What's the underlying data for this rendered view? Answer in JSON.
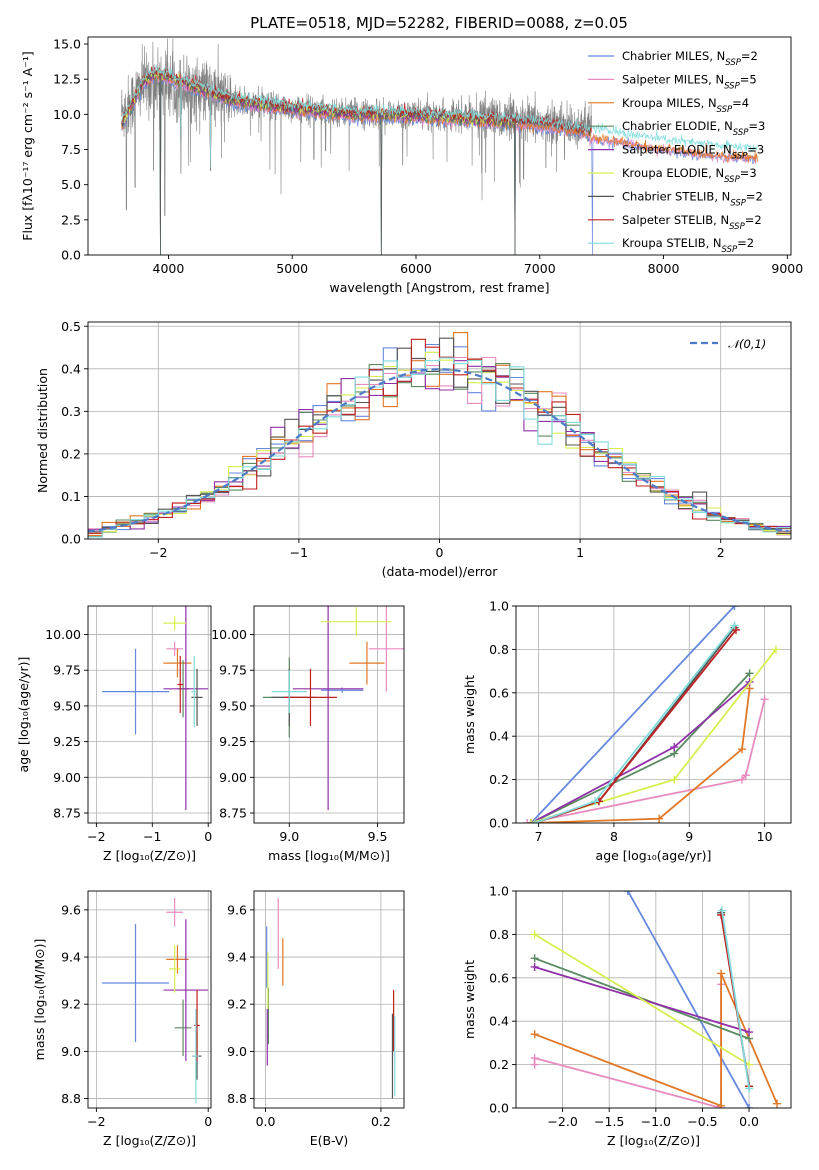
{
  "figure": {
    "title": "PLATE=0518, MJD=52282, FIBERID=0088, z=0.05"
  },
  "colors": {
    "Chabrier MILES": "#6688dd",
    "Salpeter MILES": "#e88cc0",
    "Kroupa MILES": "#e07828",
    "Chabrier ELODIE": "#5a8a60",
    "Salpeter ELODIE": "#9030a8",
    "Kroupa ELODIE": "#d8ee50",
    "Chabrier STELIB": "#555555",
    "Salpeter STELIB": "#c02020",
    "Kroupa STELIB": "#80dcdc"
  },
  "chart_data": [
    {
      "id": "spectrum",
      "type": "line",
      "title": "PLATE=0518, MJD=52282, FIBERID=0088, z=0.05",
      "xlabel": "wavelength [Angstrom, rest frame]",
      "ylabel": "Flux [fλ10⁻¹⁷ erg cm⁻² s⁻¹ A⁻¹]",
      "xlim": [
        3350,
        9030
      ],
      "ylim": [
        0,
        15.5
      ],
      "xticks": [
        "4000",
        "5000",
        "6000",
        "7000",
        "8000",
        "9000"
      ],
      "yticks": [
        "0.0",
        "2.5",
        "5.0",
        "7.5",
        "10.0",
        "12.5",
        "15.0"
      ],
      "legend_position": "top-right",
      "legend": [
        {
          "name": "Chabrier MILES",
          "sub": "SSP",
          "n": "2"
        },
        {
          "name": "Salpeter MILES",
          "sub": "SSP",
          "n": "5"
        },
        {
          "name": "Kroupa MILES",
          "sub": "SSP",
          "n": "4"
        },
        {
          "name": "Chabrier ELODIE",
          "sub": "SSP",
          "n": "3"
        },
        {
          "name": "Salpeter ELODIE",
          "sub": "SSP",
          "n": "3"
        },
        {
          "name": "Kroupa ELODIE",
          "sub": "SSP",
          "n": "3"
        },
        {
          "name": "Chabrier STELIB",
          "sub": "SSP",
          "n": "2"
        },
        {
          "name": "Salpeter STELIB",
          "sub": "SSP",
          "n": "2"
        },
        {
          "name": "Kroupa STELIB",
          "sub": "SSP",
          "n": "2"
        }
      ],
      "series": [
        {
          "name": "data",
          "x_range": [
            3620,
            7420
          ],
          "envelope": [
            [
              3650,
              10.2
            ],
            [
              3800,
              12.2
            ],
            [
              3950,
              12.4
            ],
            [
              4100,
              12.0
            ],
            [
              4300,
              11.6
            ],
            [
              4600,
              10.8
            ],
            [
              5000,
              10.4
            ],
            [
              5500,
              10.1
            ],
            [
              6000,
              10.0
            ],
            [
              6500,
              9.9
            ],
            [
              7000,
              9.4
            ],
            [
              7400,
              9.1
            ]
          ],
          "dips": [
            [
              3660,
              3.2
            ],
            [
              3730,
              4.8
            ],
            [
              3880,
              6.0
            ],
            [
              3935,
              2.2
            ],
            [
              3970,
              2.8
            ],
            [
              4101,
              5.8
            ],
            [
              4340,
              6.0
            ],
            [
              5175,
              6.8
            ],
            [
              5270,
              7.4
            ],
            [
              5893,
              6.4
            ],
            [
              6563,
              6.0
            ],
            [
              6870,
              5.4
            ],
            [
              7050,
              6.2
            ],
            [
              7200,
              6.8
            ]
          ]
        },
        {
          "name": "models",
          "x_range": [
            3620,
            8760
          ],
          "envelope": [
            [
              3620,
              9.2
            ],
            [
              3700,
              10.6
            ],
            [
              3800,
              12.4
            ],
            [
              3900,
              12.9
            ],
            [
              4000,
              12.6
            ],
            [
              4200,
              12.0
            ],
            [
              4500,
              11.0
            ],
            [
              5000,
              10.4
            ],
            [
              5500,
              10.0
            ],
            [
              6000,
              9.9
            ],
            [
              6500,
              9.6
            ],
            [
              7000,
              9.3
            ],
            [
              7500,
              8.6
            ],
            [
              8000,
              7.9
            ],
            [
              8400,
              7.5
            ],
            [
              8760,
              7.3
            ]
          ],
          "dips": [
            [
              3934,
              0.0
            ],
            [
              4101,
              8.0
            ],
            [
              4340,
              6.2
            ],
            [
              5720,
              0.0
            ],
            [
              6800,
              0.0
            ],
            [
              7425,
              0.0
            ]
          ]
        }
      ]
    },
    {
      "id": "residuals",
      "type": "step",
      "xlabel": "(data-model)/error",
      "ylabel": "Normed distribution",
      "xlim": [
        -2.5,
        2.5
      ],
      "ylim": [
        0,
        0.51
      ],
      "xticks": [
        "−2",
        "−1",
        "0",
        "1",
        "2"
      ],
      "yticks": [
        "0.0",
        "0.1",
        "0.2",
        "0.3",
        "0.4",
        "0.5"
      ],
      "bin_width": 0.1,
      "legend_position": "top-right",
      "legend": [
        {
          "name": "𝒩(0,1)"
        }
      ],
      "normal_curve": {
        "mu": 0,
        "sigma": 1
      }
    },
    {
      "id": "age_vs_Z",
      "type": "scatter",
      "xlabel": "Z [log₁₀(Z/Z⊙)]",
      "ylabel": "age  [log₁₀(age/yr)]",
      "xlim": [
        -2.15,
        0.05
      ],
      "ylim": [
        8.68,
        10.2
      ],
      "xticks": [
        "−2",
        "−1",
        "0"
      ],
      "yticks": [
        "8.75",
        "9.00",
        "9.25",
        "9.50",
        "9.75",
        "10.00"
      ],
      "points": [
        {
          "series": "Chabrier MILES",
          "x": -1.3,
          "y": 9.6,
          "xerr": 0.6,
          "yerr": 0.3
        },
        {
          "series": "Salpeter MILES",
          "x": -0.6,
          "y": 9.9,
          "xerr": 0.15,
          "yerr": 0.05
        },
        {
          "series": "Kroupa MILES",
          "x": -0.55,
          "y": 9.8,
          "xerr": 0.25,
          "yerr": 0.1
        },
        {
          "series": "Chabrier ELODIE",
          "x": -0.45,
          "y": 9.62,
          "xerr": 0.1,
          "yerr": 0.2
        },
        {
          "series": "Salpeter ELODIE",
          "x": -0.4,
          "y": 9.62,
          "xerr": 0.4,
          "yerr": 0.85
        },
        {
          "series": "Kroupa ELODIE",
          "x": -0.6,
          "y": 10.08,
          "xerr": 0.2,
          "yerr": 0.05
        },
        {
          "series": "Chabrier STELIB",
          "x": -0.2,
          "y": 9.56,
          "xerr": 0.1,
          "yerr": 0.2
        },
        {
          "series": "Salpeter STELIB",
          "x": -0.5,
          "y": 9.65,
          "xerr": 0.05,
          "yerr": 0.2
        },
        {
          "series": "Kroupa STELIB",
          "x": -0.25,
          "y": 9.6,
          "xerr": 0.05,
          "yerr": 0.25
        }
      ]
    },
    {
      "id": "age_vs_mass",
      "type": "scatter",
      "xlabel": "mass [log₁₀(M/M⊙)]",
      "ylabel": "",
      "xlim": [
        8.8,
        9.65
      ],
      "ylim": [
        8.68,
        10.2
      ],
      "xticks": [
        "9.0",
        "9.5"
      ],
      "yticks": [
        "8.75",
        "9.00",
        "9.25",
        "9.50",
        "9.75",
        "10.00"
      ],
      "points": [
        {
          "series": "Chabrier MILES",
          "x": 9.3,
          "y": 9.61,
          "xerr": 0.12,
          "yerr": 0.02
        },
        {
          "series": "Salpeter MILES",
          "x": 9.55,
          "y": 9.9,
          "xerr": 0.1,
          "yerr": 0.3
        },
        {
          "series": "Kroupa MILES",
          "x": 9.44,
          "y": 9.8,
          "xerr": 0.1,
          "yerr": 0.15
        },
        {
          "series": "Chabrier ELODIE",
          "x": 9.0,
          "y": 9.56,
          "xerr": 0.15,
          "yerr": 0.28
        },
        {
          "series": "Salpeter ELODIE",
          "x": 9.22,
          "y": 9.62,
          "xerr": 0.2,
          "yerr": 0.85
        },
        {
          "series": "Kroupa ELODIE",
          "x": 9.38,
          "y": 10.09,
          "xerr": 0.2,
          "yerr": 0.1
        },
        {
          "series": "Chabrier STELIB",
          "x": 9.0,
          "y": 9.56,
          "xerr": 0.1,
          "yerr": 0.2
        },
        {
          "series": "Salpeter STELIB",
          "x": 9.12,
          "y": 9.56,
          "xerr": 0.15,
          "yerr": 0.2
        },
        {
          "series": "Kroupa STELIB",
          "x": 9.0,
          "y": 9.6,
          "xerr": 0.1,
          "yerr": 0.15
        }
      ]
    },
    {
      "id": "weight_vs_age",
      "type": "line",
      "xlabel": "age  [log₁₀(age/yr)]",
      "ylabel": "mass weight",
      "xlim": [
        6.7,
        10.35
      ],
      "ylim": [
        0,
        1.0
      ],
      "xticks": [
        "7",
        "8",
        "9",
        "10"
      ],
      "yticks": [
        "0.0",
        "0.2",
        "0.4",
        "0.6",
        "0.8",
        "1.0"
      ],
      "series": [
        {
          "name": "Chabrier MILES",
          "x": [
            6.9,
            9.6
          ],
          "y": [
            0.0,
            1.0
          ]
        },
        {
          "name": "Salpeter MILES",
          "x": [
            6.85,
            9.7,
            9.75,
            10.0
          ],
          "y": [
            0.0,
            0.2,
            0.22,
            0.57
          ]
        },
        {
          "name": "Kroupa MILES",
          "x": [
            6.9,
            8.6,
            9.7,
            9.8
          ],
          "y": [
            0.0,
            0.02,
            0.34,
            0.62
          ]
        },
        {
          "name": "Chabrier ELODIE",
          "x": [
            6.9,
            8.8,
            9.8
          ],
          "y": [
            0.0,
            0.32,
            0.69
          ]
        },
        {
          "name": "Salpeter ELODIE",
          "x": [
            6.9,
            8.8,
            9.8
          ],
          "y": [
            0.0,
            0.35,
            0.65
          ]
        },
        {
          "name": "Kroupa ELODIE",
          "x": [
            6.9,
            8.8,
            10.15
          ],
          "y": [
            0.0,
            0.2,
            0.8
          ]
        },
        {
          "name": "Chabrier STELIB",
          "x": [
            6.95,
            7.8,
            9.6
          ],
          "y": [
            0.0,
            0.1,
            0.9
          ]
        },
        {
          "name": "Salpeter STELIB",
          "x": [
            6.95,
            7.8,
            9.62
          ],
          "y": [
            0.0,
            0.1,
            0.89
          ]
        },
        {
          "name": "Kroupa STELIB",
          "x": [
            6.95,
            7.75,
            9.6
          ],
          "y": [
            0.0,
            0.1,
            0.91
          ]
        }
      ]
    },
    {
      "id": "mass_vs_Z",
      "type": "scatter",
      "xlabel": "Z [log₁₀(Z/Z⊙)]",
      "ylabel": "mass [log₁₀(M/M⊙)]",
      "xlim": [
        -2.15,
        0.05
      ],
      "ylim": [
        8.76,
        9.68
      ],
      "xticks": [
        "−2",
        "0"
      ],
      "yticks": [
        "8.8",
        "9.0",
        "9.2",
        "9.4",
        "9.6"
      ],
      "points": [
        {
          "series": "Chabrier MILES",
          "x": -1.3,
          "y": 9.29,
          "xerr": 0.6,
          "yerr": 0.25
        },
        {
          "series": "Salpeter MILES",
          "x": -0.6,
          "y": 9.59,
          "xerr": 0.15,
          "yerr": 0.06
        },
        {
          "series": "Kroupa MILES",
          "x": -0.55,
          "y": 9.39,
          "xerr": 0.2,
          "yerr": 0.06
        },
        {
          "series": "Chabrier ELODIE",
          "x": -0.45,
          "y": 9.1,
          "xerr": 0.15,
          "yerr": 0.12
        },
        {
          "series": "Salpeter ELODIE",
          "x": -0.4,
          "y": 9.26,
          "xerr": 0.4,
          "yerr": 0.3
        },
        {
          "series": "Kroupa ELODIE",
          "x": -0.6,
          "y": 9.35,
          "xerr": 0.1,
          "yerr": 0.1
        },
        {
          "series": "Chabrier STELIB",
          "x": -0.2,
          "y": 8.98,
          "xerr": 0.08,
          "yerr": 0.1
        },
        {
          "series": "Salpeter STELIB",
          "x": -0.2,
          "y": 9.11,
          "xerr": 0.05,
          "yerr": 0.15
        },
        {
          "series": "Kroupa STELIB",
          "x": -0.22,
          "y": 8.98,
          "xerr": 0.05,
          "yerr": 0.2
        }
      ]
    },
    {
      "id": "mass_vs_ebv",
      "type": "scatter",
      "xlabel": "E(B-V)",
      "ylabel": "",
      "xlim": [
        -0.02,
        0.24
      ],
      "ylim": [
        8.76,
        9.68
      ],
      "xticks": [
        "0.0",
        "0.2"
      ],
      "yticks": [
        "8.8",
        "9.0",
        "9.2",
        "9.4",
        "9.6"
      ],
      "points": [
        {
          "series": "Chabrier MILES",
          "x": 0.002,
          "y": 9.4,
          "xerr": 0.001,
          "yerr": 0.13
        },
        {
          "series": "Salpeter MILES",
          "x": 0.022,
          "y": 9.5,
          "xerr": 0.001,
          "yerr": 0.15
        },
        {
          "series": "Kroupa MILES",
          "x": 0.03,
          "y": 9.38,
          "xerr": 0.001,
          "yerr": 0.1
        },
        {
          "series": "Chabrier ELODIE",
          "x": 0.005,
          "y": 9.15,
          "xerr": 0.001,
          "yerr": 0.12
        },
        {
          "series": "Salpeter ELODIE",
          "x": 0.003,
          "y": 9.06,
          "xerr": 0.001,
          "yerr": 0.12
        },
        {
          "series": "Kroupa ELODIE",
          "x": 0.004,
          "y": 9.3,
          "xerr": 0.001,
          "yerr": 0.12
        },
        {
          "series": "Chabrier STELIB",
          "x": 0.22,
          "y": 8.98,
          "xerr": 0.001,
          "yerr": 0.18
        },
        {
          "series": "Salpeter STELIB",
          "x": 0.222,
          "y": 9.13,
          "xerr": 0.001,
          "yerr": 0.13
        },
        {
          "series": "Kroupa STELIB",
          "x": 0.224,
          "y": 8.98,
          "xerr": 0.001,
          "yerr": 0.17
        }
      ]
    },
    {
      "id": "weight_vs_Z",
      "type": "line",
      "xlabel": "Z [log₁₀(Z/Z⊙)]",
      "ylabel": "mass weight",
      "xlim": [
        -2.5,
        0.45
      ],
      "ylim": [
        0,
        1.0
      ],
      "xticks": [
        "−2.0",
        "−1.5",
        "−1.0",
        "−0.5",
        "0.0"
      ],
      "yticks": [
        "0.0",
        "0.2",
        "0.4",
        "0.6",
        "0.8",
        "1.0"
      ],
      "series": [
        {
          "name": "Chabrier MILES",
          "x": [
            -1.3,
            0.0
          ],
          "y": [
            1.0,
            0.0
          ]
        },
        {
          "name": "Salpeter MILES",
          "x": [
            -2.3,
            -2.3,
            -0.3,
            -0.3
          ],
          "y": [
            0.2,
            0.23,
            0.0,
            0.57
          ]
        },
        {
          "name": "Kroupa MILES",
          "x": [
            -2.3,
            -0.3,
            -0.3,
            0.3
          ],
          "y": [
            0.34,
            0.01,
            0.62,
            0.02
          ]
        },
        {
          "name": "Chabrier ELODIE",
          "x": [
            -2.3,
            0.0
          ],
          "y": [
            0.69,
            0.32
          ]
        },
        {
          "name": "Salpeter ELODIE",
          "x": [
            -2.3,
            0.0
          ],
          "y": [
            0.65,
            0.35
          ]
        },
        {
          "name": "Kroupa ELODIE",
          "x": [
            -2.3,
            0.0
          ],
          "y": [
            0.8,
            0.2
          ]
        },
        {
          "name": "Chabrier STELIB",
          "x": [
            -0.3,
            0.0
          ],
          "y": [
            0.9,
            0.1
          ]
        },
        {
          "name": "Salpeter STELIB",
          "x": [
            -0.3,
            0.0
          ],
          "y": [
            0.89,
            0.1
          ]
        },
        {
          "name": "Kroupa STELIB",
          "x": [
            -0.29,
            0.0
          ],
          "y": [
            0.91,
            0.09
          ]
        }
      ]
    }
  ]
}
